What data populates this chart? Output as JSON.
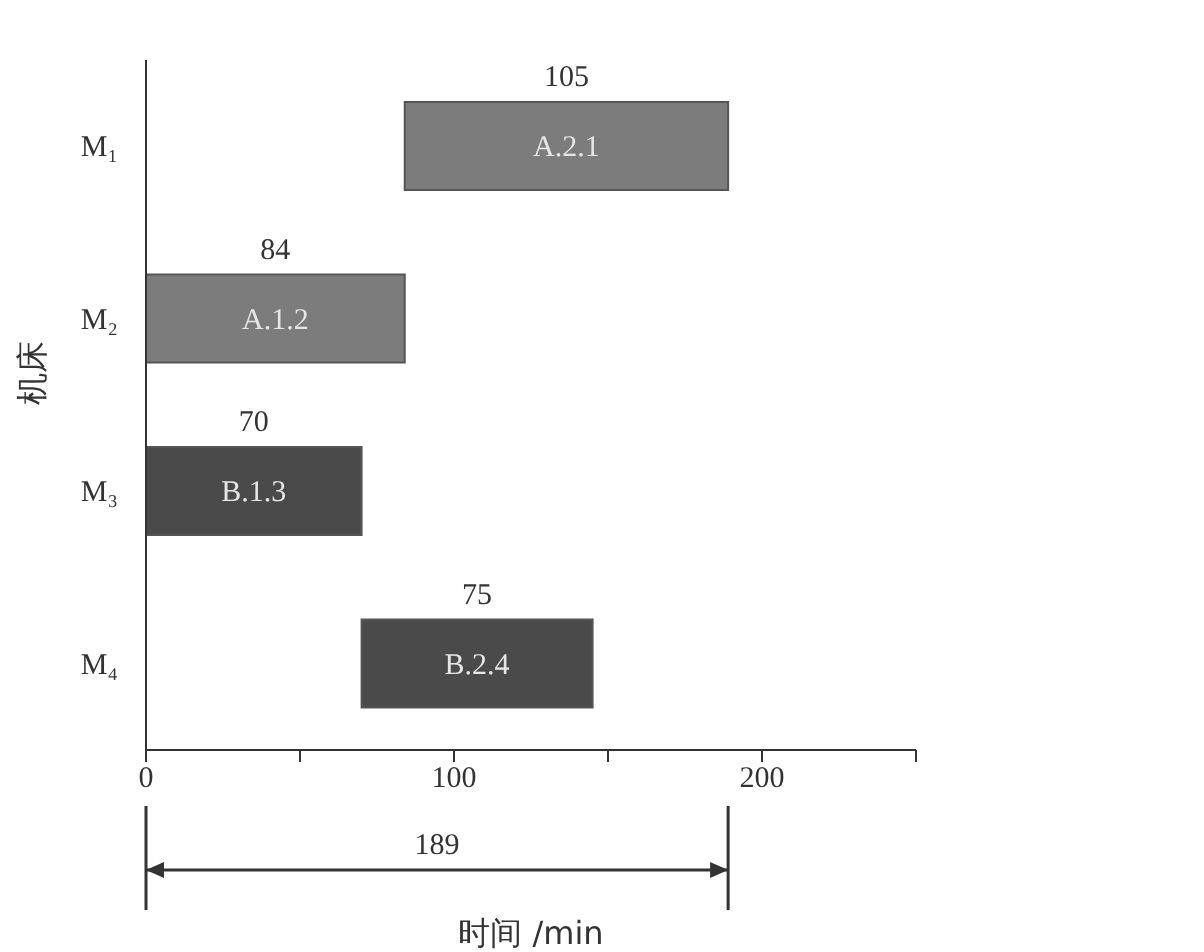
{
  "chart_data": {
    "type": "bar",
    "orientation": "horizontal",
    "xlabel": "时间 /min",
    "ylabel": "机床",
    "categories": [
      "M₁",
      "M₂",
      "M₃",
      "M₄"
    ],
    "values": [
      105,
      84,
      70,
      75
    ],
    "base": [
      84,
      0,
      0,
      70
    ],
    "colors": [
      "#7c7c7c",
      "#7c7c7c",
      "#4a4a4a",
      "#4a4a4a"
    ],
    "data_labels": true,
    "xlim": [
      0,
      250
    ],
    "xticks": [
      0,
      {
        "value": 50,
        "label": null
      },
      100,
      {
        "value": 150,
        "label": null
      },
      200,
      {
        "value": 250,
        "label": null
      }
    ],
    "annotations": [
      "A.2.1",
      "A.1.2",
      "B.1.3",
      "B.2.4",
      "189"
    ],
    "grid": false,
    "legend": false
  }
}
